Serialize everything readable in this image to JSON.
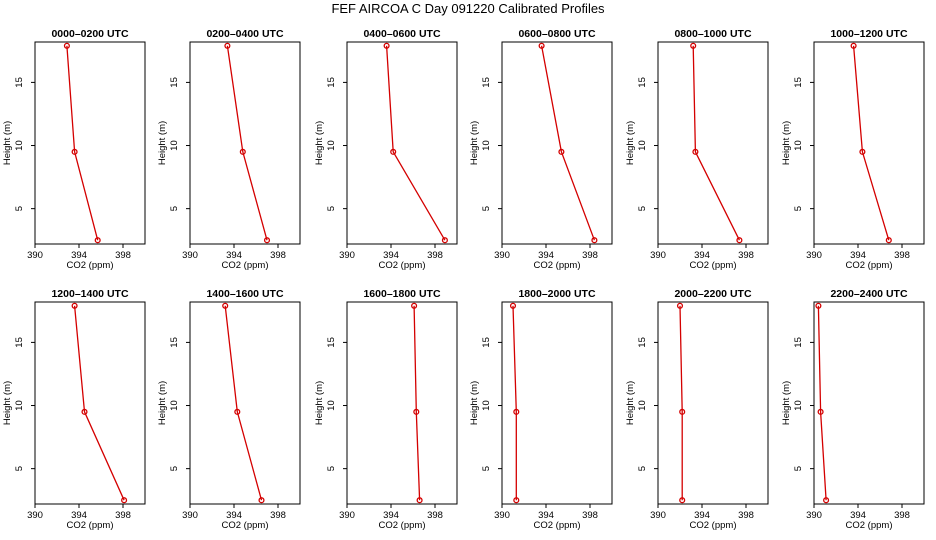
{
  "figure": {
    "title": "FEF AIRCOA C  Day 091220  Calibrated Profiles"
  },
  "style": {
    "series_color": "#d40000",
    "axis_color": "#000000",
    "background": "#ffffff"
  },
  "chart_data": [
    {
      "type": "line",
      "title": "0000–0200 UTC",
      "xlabel": "CO2 (ppm)",
      "ylabel": "Height (m)",
      "xlim": [
        390,
        400
      ],
      "ylim": [
        2.2,
        18.2
      ],
      "xticks": [
        390,
        394,
        398
      ],
      "yticks": [
        5,
        10,
        15
      ],
      "points": [
        {
          "co2": 392.9,
          "height": 17.9
        },
        {
          "co2": 393.6,
          "height": 9.5
        },
        {
          "co2": 395.7,
          "height": 2.5
        }
      ]
    },
    {
      "type": "line",
      "title": "0200–0400 UTC",
      "xlabel": "CO2 (ppm)",
      "ylabel": "Height (m)",
      "xlim": [
        390,
        400
      ],
      "ylim": [
        2.2,
        18.2
      ],
      "xticks": [
        390,
        394,
        398
      ],
      "yticks": [
        5,
        10,
        15
      ],
      "points": [
        {
          "co2": 393.4,
          "height": 17.9
        },
        {
          "co2": 394.8,
          "height": 9.5
        },
        {
          "co2": 397.0,
          "height": 2.5
        }
      ]
    },
    {
      "type": "line",
      "title": "0400–0600 UTC",
      "xlabel": "CO2 (ppm)",
      "ylabel": "Height (m)",
      "xlim": [
        390,
        400
      ],
      "ylim": [
        2.2,
        18.2
      ],
      "xticks": [
        390,
        394,
        398
      ],
      "yticks": [
        5,
        10,
        15
      ],
      "points": [
        {
          "co2": 393.6,
          "height": 17.9
        },
        {
          "co2": 394.2,
          "height": 9.5
        },
        {
          "co2": 398.9,
          "height": 2.5
        }
      ]
    },
    {
      "type": "line",
      "title": "0600–0800 UTC",
      "xlabel": "CO2 (ppm)",
      "ylabel": "Height (m)",
      "xlim": [
        390,
        400
      ],
      "ylim": [
        2.2,
        18.2
      ],
      "xticks": [
        390,
        394,
        398
      ],
      "yticks": [
        5,
        10,
        15
      ],
      "points": [
        {
          "co2": 393.6,
          "height": 17.9
        },
        {
          "co2": 395.4,
          "height": 9.5
        },
        {
          "co2": 398.4,
          "height": 2.5
        }
      ]
    },
    {
      "type": "line",
      "title": "0800–1000 UTC",
      "xlabel": "CO2 (ppm)",
      "ylabel": "Height (m)",
      "xlim": [
        390,
        400
      ],
      "ylim": [
        2.2,
        18.2
      ],
      "xticks": [
        390,
        394,
        398
      ],
      "yticks": [
        5,
        10,
        15
      ],
      "points": [
        {
          "co2": 393.2,
          "height": 17.9
        },
        {
          "co2": 393.4,
          "height": 9.5
        },
        {
          "co2": 397.4,
          "height": 2.5
        }
      ]
    },
    {
      "type": "line",
      "title": "1000–1200 UTC",
      "xlabel": "CO2 (ppm)",
      "ylabel": "Height (m)",
      "xlim": [
        390,
        400
      ],
      "ylim": [
        2.2,
        18.2
      ],
      "xticks": [
        390,
        394,
        398
      ],
      "yticks": [
        5,
        10,
        15
      ],
      "points": [
        {
          "co2": 393.6,
          "height": 17.9
        },
        {
          "co2": 394.4,
          "height": 9.5
        },
        {
          "co2": 396.8,
          "height": 2.5
        }
      ]
    },
    {
      "type": "line",
      "title": "1200–1400 UTC",
      "xlabel": "CO2 (ppm)",
      "ylabel": "Height (m)",
      "xlim": [
        390,
        400
      ],
      "ylim": [
        2.2,
        18.2
      ],
      "xticks": [
        390,
        394,
        398
      ],
      "yticks": [
        5,
        10,
        15
      ],
      "points": [
        {
          "co2": 393.6,
          "height": 17.9
        },
        {
          "co2": 394.5,
          "height": 9.5
        },
        {
          "co2": 398.1,
          "height": 2.5
        }
      ]
    },
    {
      "type": "line",
      "title": "1400–1600 UTC",
      "xlabel": "CO2 (ppm)",
      "ylabel": "Height (m)",
      "xlim": [
        390,
        400
      ],
      "ylim": [
        2.2,
        18.2
      ],
      "xticks": [
        390,
        394,
        398
      ],
      "yticks": [
        5,
        10,
        15
      ],
      "points": [
        {
          "co2": 393.2,
          "height": 17.9
        },
        {
          "co2": 394.3,
          "height": 9.5
        },
        {
          "co2": 396.5,
          "height": 2.5
        }
      ]
    },
    {
      "type": "line",
      "title": "1600–1800 UTC",
      "xlabel": "CO2 (ppm)",
      "ylabel": "Height (m)",
      "xlim": [
        390,
        400
      ],
      "ylim": [
        2.2,
        18.2
      ],
      "xticks": [
        390,
        394,
        398
      ],
      "yticks": [
        5,
        10,
        15
      ],
      "points": [
        {
          "co2": 396.1,
          "height": 17.9
        },
        {
          "co2": 396.3,
          "height": 9.5
        },
        {
          "co2": 396.6,
          "height": 2.5
        }
      ]
    },
    {
      "type": "line",
      "title": "1800–2000 UTC",
      "xlabel": "CO2 (ppm)",
      "ylabel": "Height (m)",
      "xlim": [
        390,
        400
      ],
      "ylim": [
        2.2,
        18.2
      ],
      "xticks": [
        390,
        394,
        398
      ],
      "yticks": [
        5,
        10,
        15
      ],
      "points": [
        {
          "co2": 391.0,
          "height": 17.9
        },
        {
          "co2": 391.3,
          "height": 9.5
        },
        {
          "co2": 391.3,
          "height": 2.5
        }
      ]
    },
    {
      "type": "line",
      "title": "2000–2200 UTC",
      "xlabel": "CO2 (ppm)",
      "ylabel": "Height (m)",
      "xlim": [
        390,
        400
      ],
      "ylim": [
        2.2,
        18.2
      ],
      "xticks": [
        390,
        394,
        398
      ],
      "yticks": [
        5,
        10,
        15
      ],
      "points": [
        {
          "co2": 392.0,
          "height": 17.9
        },
        {
          "co2": 392.2,
          "height": 9.5
        },
        {
          "co2": 392.2,
          "height": 2.5
        }
      ]
    },
    {
      "type": "line",
      "title": "2200–2400 UTC",
      "xlabel": "CO2 (ppm)",
      "ylabel": "Height (m)",
      "xlim": [
        390,
        400
      ],
      "ylim": [
        2.2,
        18.2
      ],
      "xticks": [
        390,
        394,
        398
      ],
      "yticks": [
        5,
        10,
        15
      ],
      "points": [
        {
          "co2": 390.4,
          "height": 17.9
        },
        {
          "co2": 390.6,
          "height": 9.5
        },
        {
          "co2": 391.1,
          "height": 2.5
        }
      ]
    }
  ]
}
